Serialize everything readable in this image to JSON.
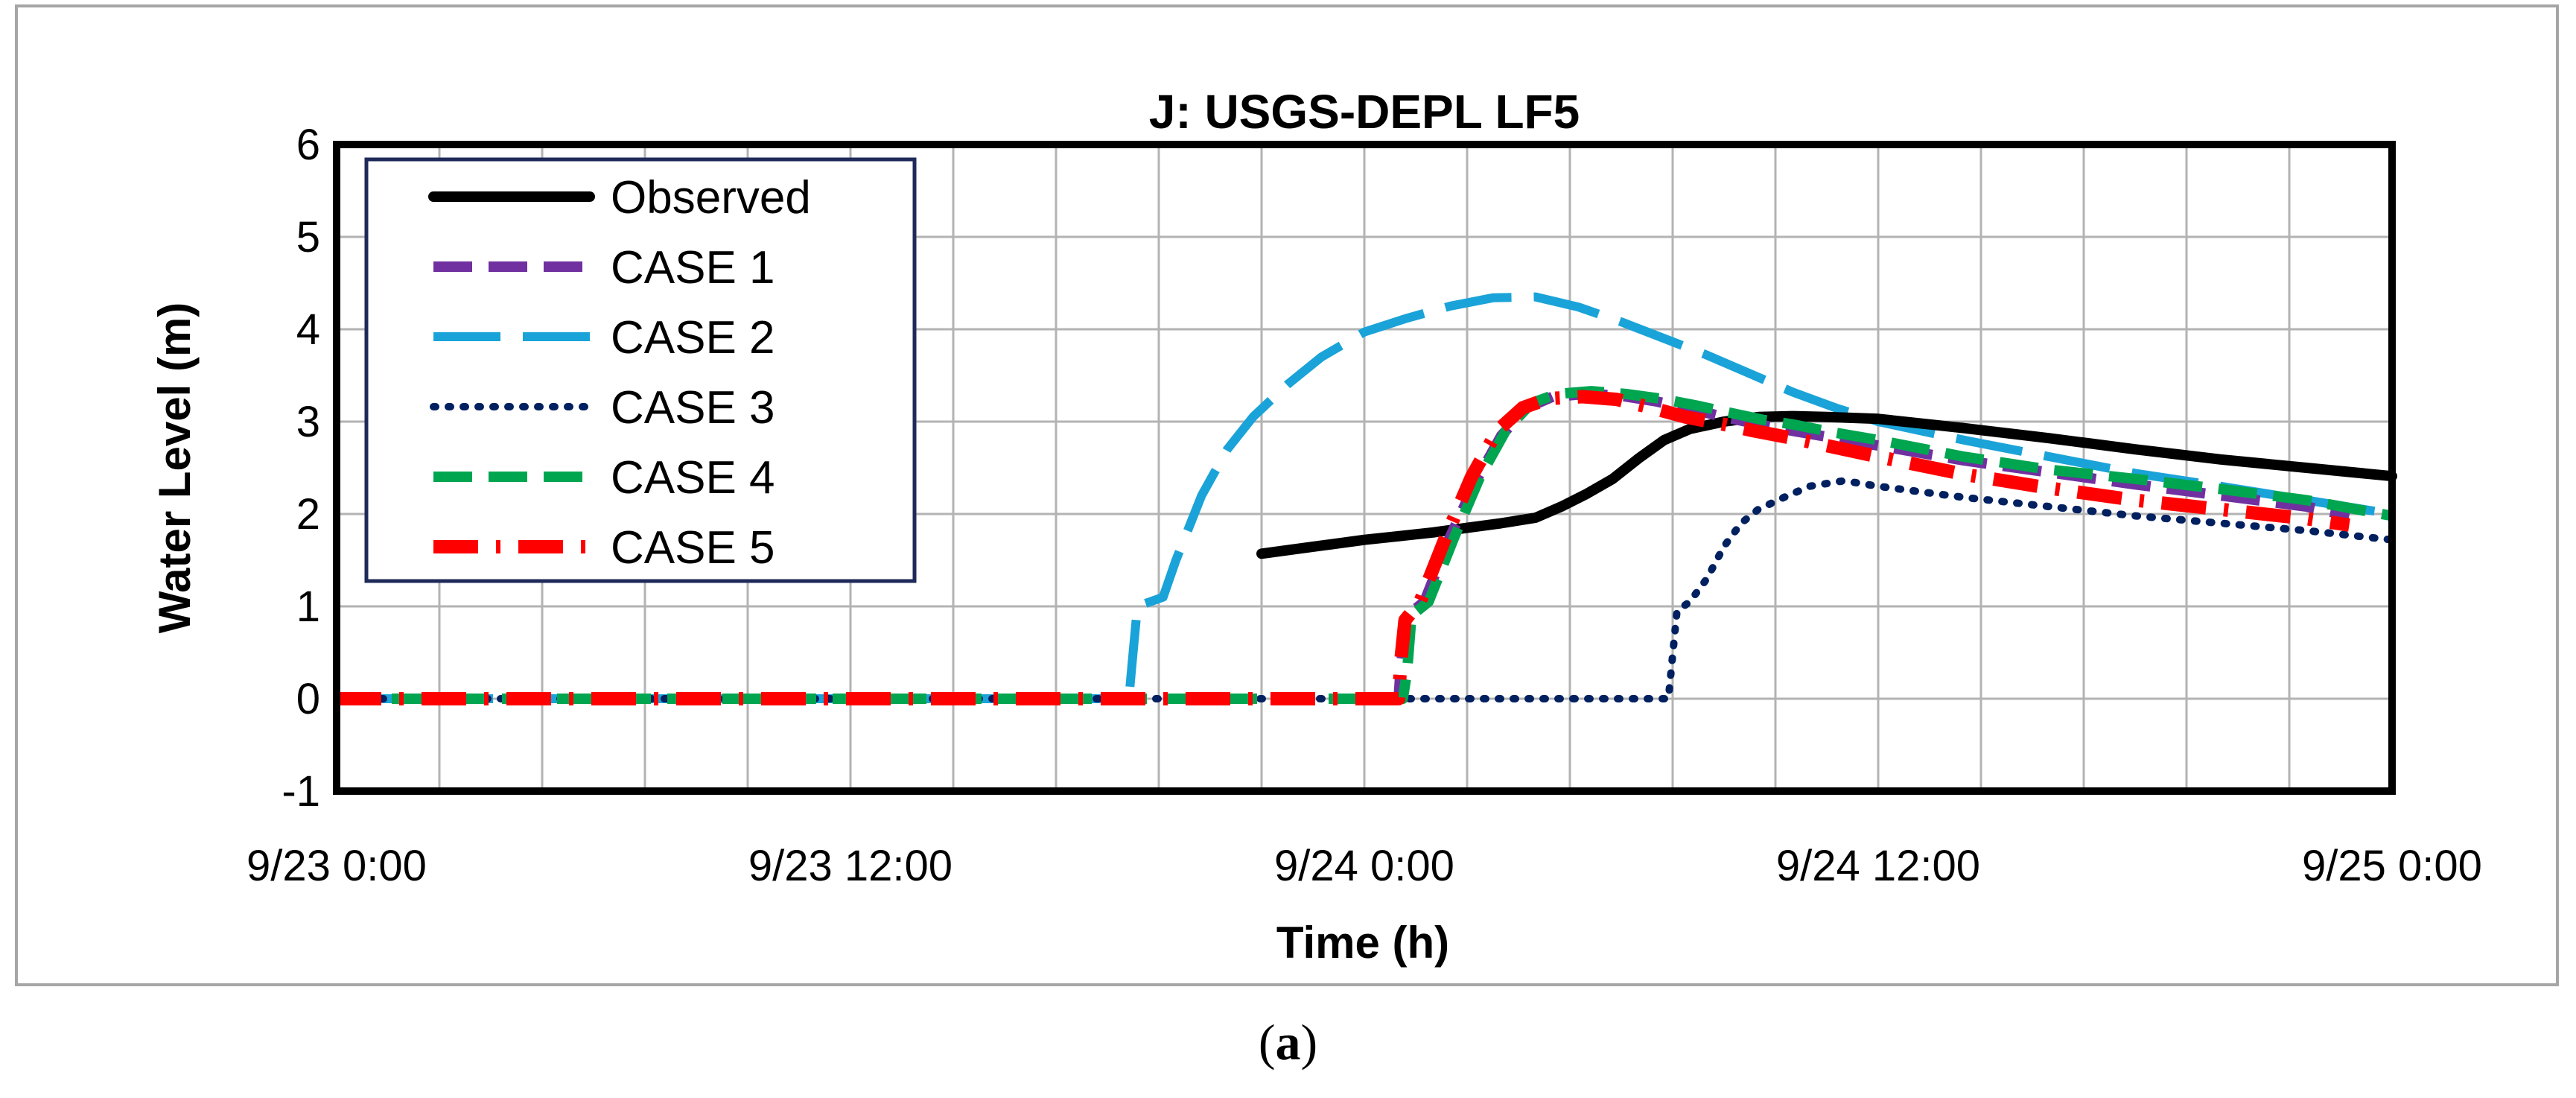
{
  "chart_data": {
    "type": "line",
    "title": "J: USGS-DEPL LF5",
    "xlabel": "Time (h)",
    "ylabel": "Water Level (m)",
    "xlim": [
      0,
      48
    ],
    "ylim": [
      -1,
      6
    ],
    "x_unit": "hours",
    "x_tick_values": [
      0,
      12,
      24,
      36,
      48
    ],
    "x_tick_labels": [
      "9/23 0:00",
      "9/23 12:00",
      "9/24 0:00",
      "9/24 12:00",
      "9/25 0:00"
    ],
    "y_ticks": [
      -1,
      0,
      1,
      2,
      3,
      4,
      5,
      6
    ],
    "grid": true,
    "legend_position": "top-left",
    "series": [
      {
        "name": "Observed",
        "color": "#000000",
        "style": "solid",
        "points": [
          [
            21.6,
            1.57
          ],
          [
            22.4,
            1.62
          ],
          [
            23.2,
            1.67
          ],
          [
            24,
            1.72
          ],
          [
            24.8,
            1.76
          ],
          [
            25.6,
            1.8
          ],
          [
            26.4,
            1.85
          ],
          [
            27.2,
            1.9
          ],
          [
            28,
            1.96
          ],
          [
            28.6,
            2.08
          ],
          [
            29.2,
            2.22
          ],
          [
            29.8,
            2.38
          ],
          [
            30.4,
            2.6
          ],
          [
            31,
            2.8
          ],
          [
            31.6,
            2.92
          ],
          [
            32.4,
            3.0
          ],
          [
            33.2,
            3.05
          ],
          [
            34,
            3.06
          ],
          [
            34.8,
            3.05
          ],
          [
            36,
            3.03
          ],
          [
            38,
            2.93
          ],
          [
            40,
            2.82
          ],
          [
            42,
            2.7
          ],
          [
            44,
            2.59
          ],
          [
            46,
            2.5
          ],
          [
            48,
            2.41
          ]
        ]
      },
      {
        "name": "CASE 1",
        "color": "#7030a0",
        "style": "dash",
        "points": [
          [
            0,
            0
          ],
          [
            24.8,
            0
          ],
          [
            24.85,
            0.35
          ],
          [
            25.0,
            0.9
          ],
          [
            25.4,
            1.05
          ],
          [
            26.0,
            1.75
          ],
          [
            26.6,
            2.35
          ],
          [
            27.2,
            2.85
          ],
          [
            27.8,
            3.15
          ],
          [
            28.4,
            3.27
          ],
          [
            29.2,
            3.3
          ],
          [
            30.0,
            3.28
          ],
          [
            30.8,
            3.22
          ],
          [
            31.6,
            3.14
          ],
          [
            32.4,
            3.05
          ],
          [
            33.2,
            2.97
          ],
          [
            34,
            2.9
          ],
          [
            35,
            2.82
          ],
          [
            36,
            2.74
          ],
          [
            38,
            2.58
          ],
          [
            40,
            2.45
          ],
          [
            42,
            2.32
          ],
          [
            44,
            2.2
          ],
          [
            46,
            2.08
          ],
          [
            47,
            1.98
          ]
        ]
      },
      {
        "name": "CASE 2",
        "color": "#1aa3d8",
        "style": "longdash",
        "points": [
          [
            0,
            0
          ],
          [
            18.5,
            0
          ],
          [
            18.6,
            0.5
          ],
          [
            18.7,
            1.0
          ],
          [
            19.3,
            1.1
          ],
          [
            19.6,
            1.5
          ],
          [
            20.2,
            2.2
          ],
          [
            20.8,
            2.7
          ],
          [
            21.4,
            3.05
          ],
          [
            22.2,
            3.4
          ],
          [
            23,
            3.7
          ],
          [
            24,
            3.97
          ],
          [
            25,
            4.12
          ],
          [
            26,
            4.25
          ],
          [
            27,
            4.34
          ],
          [
            28,
            4.35
          ],
          [
            29,
            4.24
          ],
          [
            30,
            4.08
          ],
          [
            31,
            3.9
          ],
          [
            32,
            3.72
          ],
          [
            33,
            3.52
          ],
          [
            34,
            3.32
          ],
          [
            35,
            3.15
          ],
          [
            36,
            3.0
          ],
          [
            38,
            2.8
          ],
          [
            40,
            2.62
          ],
          [
            42,
            2.44
          ],
          [
            44,
            2.3
          ],
          [
            46,
            2.15
          ],
          [
            48,
            2.0
          ]
        ]
      },
      {
        "name": "CASE 3",
        "color": "#002060",
        "style": "dot",
        "points": [
          [
            0,
            0
          ],
          [
            31.1,
            0
          ],
          [
            31.3,
            0.95
          ],
          [
            31.6,
            1.05
          ],
          [
            32,
            1.3
          ],
          [
            32.4,
            1.65
          ],
          [
            32.8,
            1.9
          ],
          [
            33.2,
            2.05
          ],
          [
            33.8,
            2.18
          ],
          [
            34.4,
            2.3
          ],
          [
            35.2,
            2.36
          ],
          [
            36,
            2.3
          ],
          [
            38,
            2.18
          ],
          [
            40,
            2.08
          ],
          [
            42,
            1.98
          ],
          [
            44,
            1.9
          ],
          [
            46,
            1.82
          ],
          [
            48,
            1.72
          ]
        ]
      },
      {
        "name": "CASE 4",
        "color": "#00a550",
        "style": "dash",
        "points": [
          [
            0,
            0
          ],
          [
            24.9,
            0
          ],
          [
            25.0,
            0.3
          ],
          [
            25.1,
            0.9
          ],
          [
            25.5,
            1.05
          ],
          [
            26.1,
            1.75
          ],
          [
            26.7,
            2.4
          ],
          [
            27.3,
            2.9
          ],
          [
            27.9,
            3.2
          ],
          [
            28.5,
            3.3
          ],
          [
            29.3,
            3.33
          ],
          [
            30.1,
            3.3
          ],
          [
            30.9,
            3.25
          ],
          [
            31.7,
            3.18
          ],
          [
            32.5,
            3.1
          ],
          [
            33.3,
            3.02
          ],
          [
            34,
            2.97
          ],
          [
            35,
            2.88
          ],
          [
            36,
            2.8
          ],
          [
            38,
            2.62
          ],
          [
            40,
            2.48
          ],
          [
            42,
            2.38
          ],
          [
            44,
            2.27
          ],
          [
            46,
            2.15
          ],
          [
            48,
            1.98
          ]
        ]
      },
      {
        "name": "CASE 5",
        "color": "#ff0000",
        "style": "dashdot",
        "points": [
          [
            0,
            0
          ],
          [
            24.8,
            0
          ],
          [
            24.85,
            0.4
          ],
          [
            24.95,
            0.85
          ],
          [
            25.3,
            1.05
          ],
          [
            25.9,
            1.75
          ],
          [
            26.5,
            2.4
          ],
          [
            27.1,
            2.9
          ],
          [
            27.7,
            3.15
          ],
          [
            28.3,
            3.25
          ],
          [
            29.1,
            3.27
          ],
          [
            29.9,
            3.24
          ],
          [
            30.7,
            3.15
          ],
          [
            31.5,
            3.05
          ],
          [
            32.3,
            2.98
          ],
          [
            33.1,
            2.9
          ],
          [
            34,
            2.82
          ],
          [
            35,
            2.72
          ],
          [
            36,
            2.62
          ],
          [
            38,
            2.43
          ],
          [
            40,
            2.28
          ],
          [
            42,
            2.15
          ],
          [
            44,
            2.05
          ],
          [
            46,
            1.95
          ],
          [
            47,
            1.88
          ]
        ]
      }
    ]
  },
  "caption": {
    "open": "(",
    "letter": "a",
    "close": ")"
  }
}
